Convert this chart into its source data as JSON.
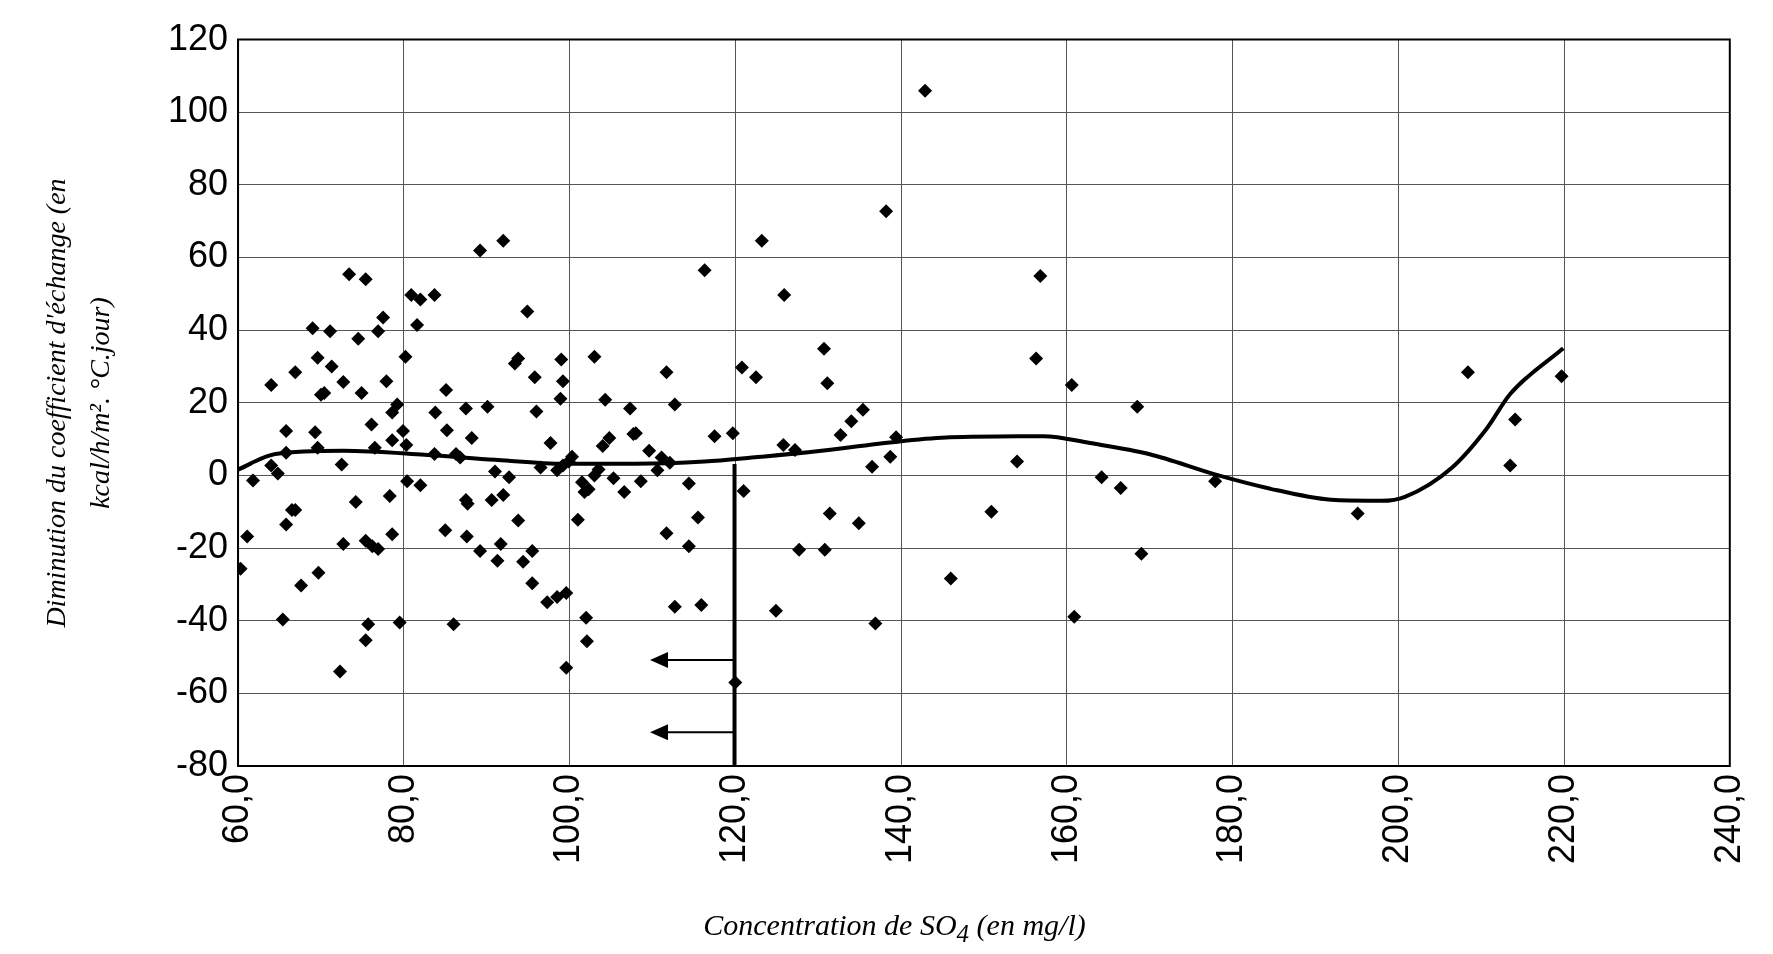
{
  "chart_data": {
    "type": "scatter",
    "xlabel": "Concentration de SO$_{4}$ (en mg/l)",
    "ylabel": "Diminution du coefficient d'échange (en\nkcal/h/m². °C.jour)",
    "xlim": [
      60,
      240
    ],
    "xticks": [
      {
        "value": 60,
        "label": "60,0"
      },
      {
        "value": 80,
        "label": "80,0"
      },
      {
        "value": 100,
        "label": "100,0"
      },
      {
        "value": 120,
        "label": "120,0"
      },
      {
        "value": 140,
        "label": "140,0"
      },
      {
        "value": 160,
        "label": "160,0"
      },
      {
        "value": 180,
        "label": "180,0"
      },
      {
        "value": 200,
        "label": "200,0"
      },
      {
        "value": 220,
        "label": "220,0"
      },
      {
        "value": 240,
        "label": "240,0"
      }
    ],
    "ylim": [
      -80,
      120
    ],
    "yticks": [
      -80,
      -60,
      -40,
      -20,
      0,
      20,
      40,
      60,
      80,
      100,
      120
    ],
    "grid": true,
    "legend": false,
    "series": [
      {
        "type": "scatter",
        "color": "#000000",
        "marker": "diamond",
        "x": [
          60.3,
          61.1,
          61.8,
          64,
          64,
          64.8,
          65.4,
          65.8,
          65.8,
          65.8,
          66.5,
          66.9,
          66.9,
          67.6,
          69,
          69.3,
          69.6,
          69.6,
          69.7,
          70,
          70.4,
          71.1,
          71.3,
          72.3,
          72.7,
          72.5,
          72.7,
          73.4,
          74.2,
          74.5,
          74.9,
          75.4,
          75.4,
          75.7,
          75.4,
          76.1,
          76.2,
          76.5,
          76.9,
          76.9,
          77.5,
          77.9,
          78.3,
          78.6,
          78.6,
          78.6,
          79.2,
          79.5,
          79.9,
          80.2,
          80.3,
          80.4,
          80.9,
          81.6,
          82,
          82,
          83.7,
          83.8,
          83.7,
          85,
          85.1,
          85.2,
          86,
          86.3,
          86.8,
          87.5,
          87.6,
          87.5,
          87.7,
          88.2,
          89.2,
          89.2,
          90.1,
          90.6,
          91,
          91.3,
          91.7,
          92,
          92,
          92.7,
          93.4,
          93.8,
          93.8,
          94.4,
          94.9,
          95.5,
          95.5,
          95.8,
          96,
          96.5,
          97.3,
          97.7,
          98.5,
          98.5,
          98.9,
          99,
          99.2,
          99.2,
          99.6,
          99.6,
          99.9,
          100.3,
          101,
          101.5,
          101.8,
          102,
          102.1,
          102.3,
          103,
          103,
          103.5,
          104,
          104.3,
          104.8,
          105.3,
          106.6,
          107.3,
          107.7,
          108,
          108.6,
          109.6,
          110.6,
          111.1,
          111.7,
          111.7,
          112.1,
          112.7,
          112.7,
          114.4,
          114.4,
          115.5,
          115.9,
          116.3,
          117.5,
          119.7,
          120,
          120.8,
          121,
          122.5,
          123.2,
          124.9,
          125.8,
          125.9,
          127.2,
          127.7,
          130.7,
          131.1,
          131.4,
          130.8,
          132.7,
          134,
          134.9,
          135.4,
          136.5,
          136.9,
          138.2,
          138.7,
          139.4,
          142.9,
          146,
          150.9,
          154,
          156.8,
          156.3,
          160.6,
          160.9,
          164.2,
          166.5,
          168.5,
          169,
          177.9,
          195.1,
          208.4,
          213.5,
          214.1,
          219.7
        ],
        "values": [
          -25.7,
          -16.8,
          -1.4,
          24.9,
          2.7,
          0.5,
          -39.7,
          12.2,
          6.2,
          -13.5,
          -9.5,
          -9.5,
          28.4,
          -30.3,
          40.5,
          11.9,
          32.4,
          7.6,
          -26.8,
          22.2,
          22.7,
          39.7,
          30,
          -54,
          -18.9,
          3,
          25.7,
          55.4,
          -7.3,
          37.6,
          22.7,
          54,
          -18,
          -41,
          -45.4,
          14,
          -19.5,
          7.6,
          39.7,
          -20.3,
          43.5,
          25.9,
          -5.7,
          17.3,
          -16.2,
          9.7,
          19.5,
          -40.5,
          12.2,
          32.7,
          8.4,
          -1.6,
          49.7,
          41.4,
          48.4,
          -2.7,
          49.7,
          17.3,
          5.9,
          -15.1,
          23.5,
          12.4,
          -41,
          5.9,
          4.9,
          -6.8,
          -16.8,
          18.4,
          -7.8,
          10.3,
          61.9,
          -20.8,
          18.9,
          -6.8,
          1.1,
          -23.5,
          -18.9,
          64.6,
          -5.4,
          -0.5,
          30.8,
          32.2,
          -12.4,
          -23.8,
          45.1,
          -20.8,
          -29.7,
          27,
          17.6,
          2.2,
          -34.9,
          8.9,
          -33.5,
          1.4,
          21.1,
          31.9,
          25.9,
          2.7,
          -53,
          -32.4,
          3.8,
          5.1,
          -12.2,
          -1.9,
          -4.6,
          -39.2,
          -45.7,
          -3.8,
          32.7,
          0,
          1.6,
          8.1,
          20.8,
          10.3,
          -0.8,
          -4.6,
          18.4,
          11.4,
          11.6,
          -1.6,
          6.8,
          1.4,
          4.9,
          28.4,
          -15.9,
          3.5,
          -36.2,
          19.5,
          -2.2,
          -19.5,
          -11.6,
          -35.7,
          56.5,
          10.8,
          11.6,
          -57,
          29.7,
          -4.3,
          27,
          64.6,
          -37.3,
          8.4,
          49.7,
          7,
          -20.5,
          34.9,
          25.4,
          -10.5,
          -20.5,
          11.1,
          14.9,
          -13.2,
          18.1,
          2.4,
          -40.8,
          72.7,
          5.1,
          10.5,
          105.9,
          -28.4,
          -10,
          3.8,
          54.9,
          32.2,
          24.9,
          -38.9,
          -0.5,
          -3.5,
          18.9,
          -21.6,
          -1.6,
          -10.5,
          28.4,
          2.7,
          15.4,
          27.3
        ]
      },
      {
        "type": "line",
        "color": "#000000",
        "marker": "none",
        "line_style": "solid",
        "x": [
          60,
          64.5,
          72.7,
          82.5,
          91,
          99.4,
          107.9,
          116.3,
          122,
          130.4,
          140.3,
          145.9,
          157.2,
          162.8,
          169.9,
          178.3,
          185.4,
          192.4,
          198,
          200.8,
          206.5,
          210.7,
          213.5,
          219.9
        ],
        "values": [
          1.6,
          5.9,
          6.8,
          5.7,
          4.3,
          3.2,
          3.2,
          3.8,
          4.9,
          6.8,
          9.5,
          10.5,
          10.8,
          8.9,
          5.9,
          0,
          -4.1,
          -6.8,
          -7,
          -5.9,
          2.2,
          13,
          22.4,
          35
        ]
      }
    ]
  }
}
